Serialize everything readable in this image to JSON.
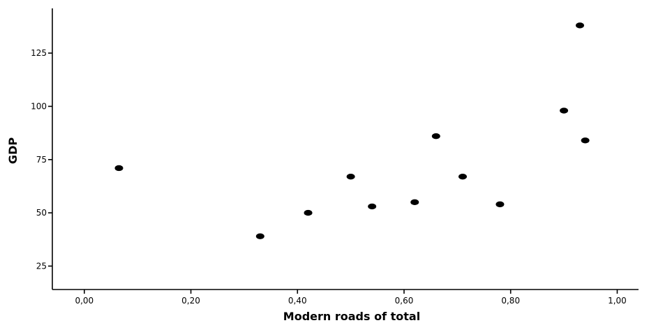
{
  "chart_data": {
    "type": "scatter",
    "title": "",
    "xlabel": "Modern roads of total",
    "ylabel": "GDP",
    "xlim": [
      -0.06,
      1.04
    ],
    "ylim": [
      14,
      146
    ],
    "grid": false,
    "x_ticks": [
      {
        "value": 0.0,
        "label": "0,00"
      },
      {
        "value": 0.2,
        "label": "0,20"
      },
      {
        "value": 0.4,
        "label": "0,40"
      },
      {
        "value": 0.6,
        "label": "0,60"
      },
      {
        "value": 0.8,
        "label": "0,80"
      },
      {
        "value": 1.0,
        "label": "1,00"
      }
    ],
    "y_ticks": [
      {
        "value": 25,
        "label": "25"
      },
      {
        "value": 50,
        "label": "50"
      },
      {
        "value": 75,
        "label": "75"
      },
      {
        "value": 100,
        "label": "100"
      },
      {
        "value": 125,
        "label": "125"
      }
    ],
    "points": [
      {
        "x": 0.065,
        "y": 71
      },
      {
        "x": 0.33,
        "y": 39
      },
      {
        "x": 0.42,
        "y": 50
      },
      {
        "x": 0.5,
        "y": 67
      },
      {
        "x": 0.54,
        "y": 53
      },
      {
        "x": 0.62,
        "y": 55
      },
      {
        "x": 0.66,
        "y": 86
      },
      {
        "x": 0.71,
        "y": 67
      },
      {
        "x": 0.78,
        "y": 54
      },
      {
        "x": 0.9,
        "y": 98
      },
      {
        "x": 0.93,
        "y": 138
      },
      {
        "x": 0.94,
        "y": 84
      }
    ]
  }
}
